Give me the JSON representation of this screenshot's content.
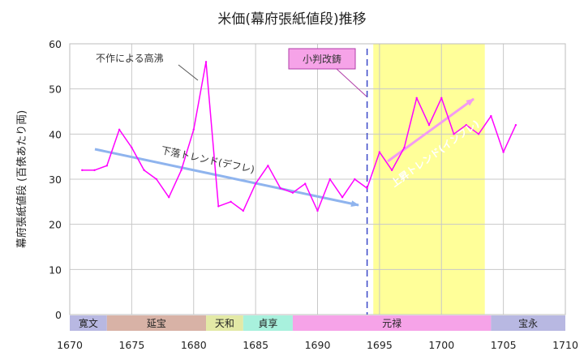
{
  "chart_data": {
    "type": "line",
    "title": "米価(幕府張紙値段)推移",
    "ylabel": "幕府張紙値段 (百俵あたり両)",
    "xlim": [
      1670,
      1710
    ],
    "ylim": [
      0,
      60
    ],
    "x_ticks": [
      "1670",
      "1675",
      "1680",
      "1685",
      "1690",
      "1695",
      "1700",
      "1705",
      "1710"
    ],
    "y_ticks": [
      "0",
      "10",
      "20",
      "30",
      "40",
      "50",
      "60"
    ],
    "grid": true,
    "series": [
      {
        "x": [
          1671,
          1672,
          1673,
          1674,
          1675,
          1676,
          1677,
          1678,
          1679,
          1680,
          1681,
          1682,
          1683,
          1684,
          1685,
          1686,
          1687,
          1688,
          1689,
          1690,
          1691,
          1692,
          1693,
          1694,
          1695,
          1696,
          1697,
          1698,
          1699,
          1700,
          1701,
          1702,
          1703,
          1704,
          1705,
          1706
        ],
        "values": [
          32,
          32,
          33,
          41,
          37,
          32,
          30,
          26,
          32,
          41,
          56,
          24,
          25,
          23,
          29,
          33,
          28,
          27,
          29,
          23,
          30,
          26,
          30,
          28,
          36,
          32,
          37,
          48,
          42,
          48,
          40,
          42,
          40,
          44,
          36,
          42
        ]
      }
    ],
    "colors": {
      "line": "#ff00ff",
      "trend_down": "#8fb4ee",
      "trend_up": "#f39af3",
      "highlight": "#ffff99",
      "divider": "#3a48c8"
    },
    "eras": [
      {
        "label": "寛文",
        "start": 1670,
        "end": 1673,
        "color": "#b8b8e2"
      },
      {
        "label": "延宝",
        "start": 1673,
        "end": 1681,
        "color": "#d8b2a6"
      },
      {
        "label": "天和",
        "start": 1681,
        "end": 1684,
        "color": "#e3e9a6"
      },
      {
        "label": "貞享",
        "start": 1684,
        "end": 1688,
        "color": "#a8f1dd"
      },
      {
        "label": "元禄",
        "start": 1688,
        "end": 1704,
        "color": "#f6a3e8"
      },
      {
        "label": "宝永",
        "start": 1704,
        "end": 1710,
        "color": "#b8b8e2"
      }
    ],
    "highlight_range": [
      1694.5,
      1703.5
    ],
    "divider_year": 1694,
    "annotations": {
      "boom": "不作による高沸",
      "reform": "小判改鋳",
      "trend_down": "下落トレンド(デフレ)",
      "trend_up": "上昇トレンド(インフレ)"
    }
  }
}
